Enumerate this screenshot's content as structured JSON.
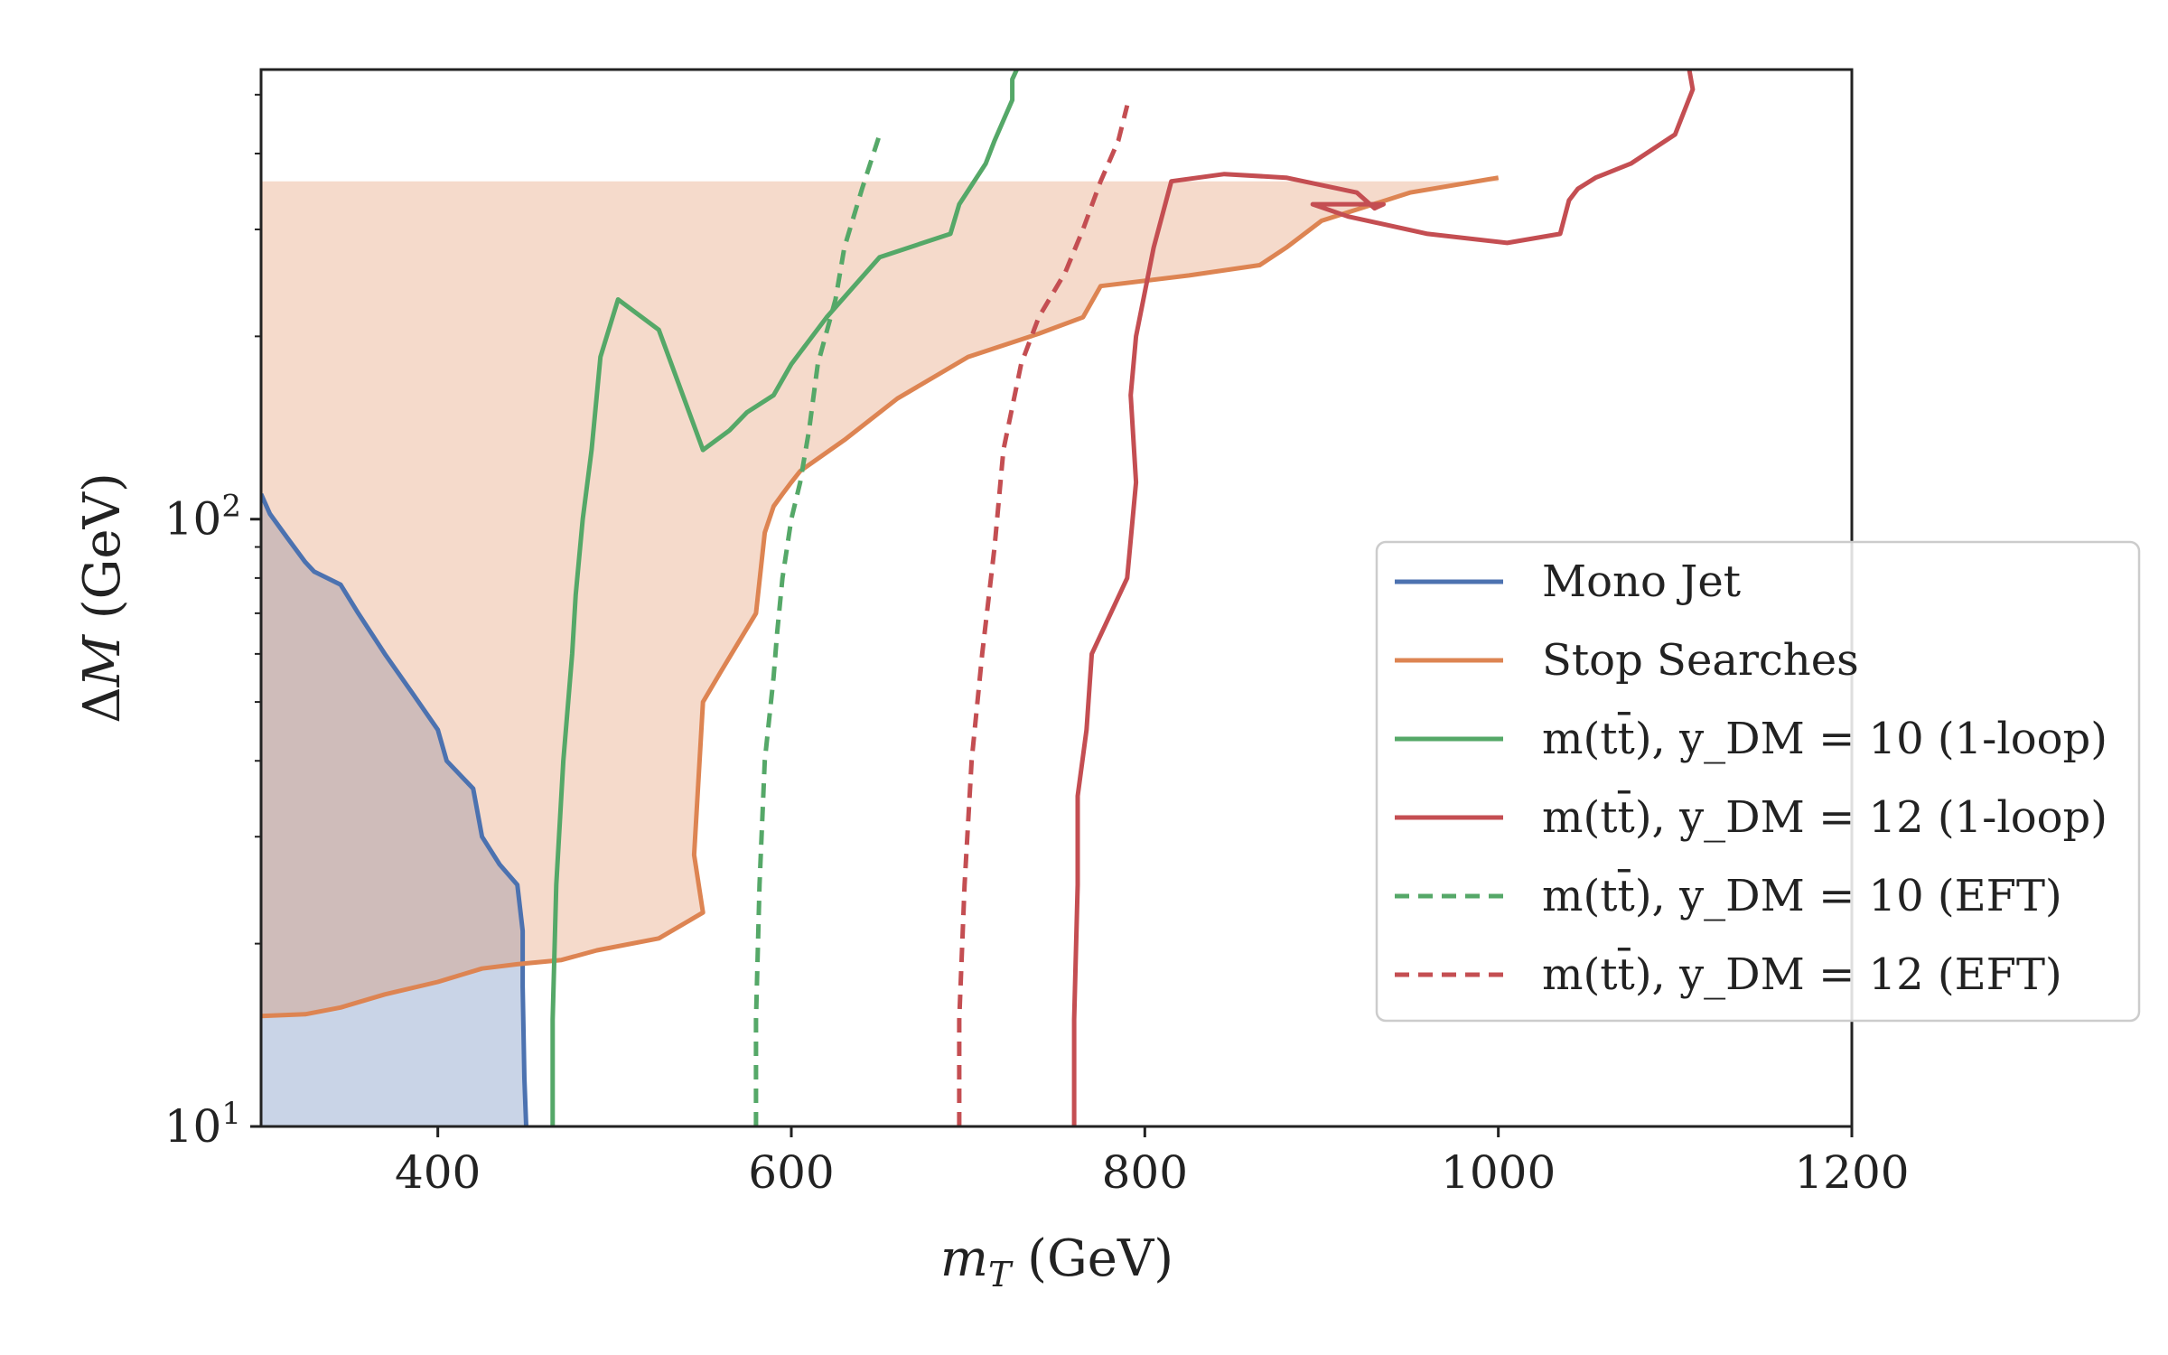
{
  "chart_data": {
    "type": "line",
    "xlabel": "m_T (GeV)",
    "ylabel": "ΔM (GeV)",
    "xlim": [
      300,
      1200
    ],
    "ylim": [
      10,
      550
    ],
    "y_scale": "log",
    "x_ticks": [
      400,
      600,
      800,
      1000,
      1200
    ],
    "x_tick_labels": [
      "400",
      "600",
      "800",
      "1000",
      "1200"
    ],
    "y_major_ticks": [
      10,
      100
    ],
    "y_tick_labels": [
      {
        "base": "10",
        "exp": "1"
      },
      {
        "base": "10",
        "exp": "2"
      }
    ],
    "grid": false,
    "legend_position": "right",
    "series": [
      {
        "name": "Mono Jet",
        "style": "solid",
        "color": "#4c72b0",
        "fill": true,
        "fill_opacity": 0.3,
        "x": [
          300,
          305,
          315,
          325,
          330,
          345,
          355,
          370,
          385,
          400,
          405,
          420,
          425,
          435,
          445,
          448,
          448,
          449,
          450
        ],
        "y": [
          110,
          102,
          93,
          85,
          82,
          78,
          70,
          60,
          52,
          45,
          40,
          36,
          30,
          27,
          25,
          21,
          17,
          12,
          10
        ]
      },
      {
        "name": "Stop Searches",
        "style": "solid",
        "color": "#dd8452",
        "fill": true,
        "fill_opacity": 0.3,
        "fill_top": 360,
        "x": [
          300,
          325,
          345,
          370,
          400,
          425,
          445,
          470,
          490,
          525,
          550,
          545,
          550,
          560,
          580,
          585,
          590,
          595,
          600,
          605,
          630,
          660,
          700,
          740,
          765,
          775,
          825,
          865,
          880,
          900,
          950,
          1000
        ],
        "y": [
          15.2,
          15.3,
          15.7,
          16.5,
          17.3,
          18.2,
          18.5,
          18.8,
          19.5,
          20.4,
          22.5,
          28.0,
          50.0,
          56.0,
          70.0,
          95.0,
          105.0,
          110.0,
          115.0,
          120.0,
          135.0,
          158.0,
          185.0,
          202.0,
          215.0,
          242.0,
          252.0,
          262.0,
          280.0,
          310.0,
          345.0,
          365.0
        ]
      },
      {
        "name": "m(tt̄), y_DM = 10 (1-loop)",
        "style": "solid",
        "color": "#55a868",
        "fill": false,
        "x": [
          465,
          465,
          467,
          471,
          476,
          478,
          482,
          487,
          492,
          502,
          525,
          550,
          565,
          575,
          590,
          600,
          620,
          650,
          690,
          695,
          710,
          715,
          725,
          725,
          730,
          735,
          740
        ],
        "y": [
          10,
          15,
          25,
          40,
          60,
          75,
          100,
          130,
          185,
          230,
          205,
          130,
          140,
          150,
          160,
          180,
          215,
          270,
          295,
          330,
          385,
          420,
          490,
          530,
          570,
          610,
          650
        ]
      },
      {
        "name": "m(tt̄), y_DM = 12 (1-loop)",
        "style": "solid",
        "color": "#c44e52",
        "fill": false,
        "x": [
          760,
          760,
          762,
          762,
          767,
          770,
          790,
          795,
          792,
          795,
          805,
          815,
          845,
          880,
          920,
          930,
          935,
          895,
          915,
          960,
          1005,
          1035,
          1040,
          1045,
          1055,
          1075,
          1100,
          1110,
          1108,
          1120,
          1130
        ],
        "y": [
          10,
          15,
          25,
          35,
          45,
          60,
          80,
          115,
          160,
          200,
          280,
          360,
          370,
          365,
          345,
          325,
          330,
          330,
          315,
          295,
          285,
          295,
          335,
          350,
          365,
          385,
          430,
          510,
          550,
          590,
          650
        ]
      },
      {
        "name": "m(tt̄), y_DM = 10 (EFT)",
        "style": "dashed",
        "color": "#55a868",
        "fill": false,
        "x": [
          580,
          580,
          582,
          585,
          590,
          592,
          595,
          600,
          605,
          610,
          615,
          625,
          630,
          640,
          650
        ],
        "y": [
          10,
          15,
          25,
          40,
          55,
          65,
          80,
          100,
          115,
          140,
          180,
          230,
          280,
          350,
          430
        ]
      },
      {
        "name": "m(tt̄), y_DM = 12 (EFT)",
        "style": "dashed",
        "color": "#c44e52",
        "fill": false,
        "x": [
          695,
          695,
          698,
          702,
          708,
          715,
          720,
          730,
          740,
          755,
          765,
          775,
          785,
          790
        ],
        "y": [
          10,
          15,
          25,
          40,
          60,
          90,
          130,
          180,
          215,
          255,
          300,
          360,
          420,
          480
        ]
      }
    ]
  }
}
